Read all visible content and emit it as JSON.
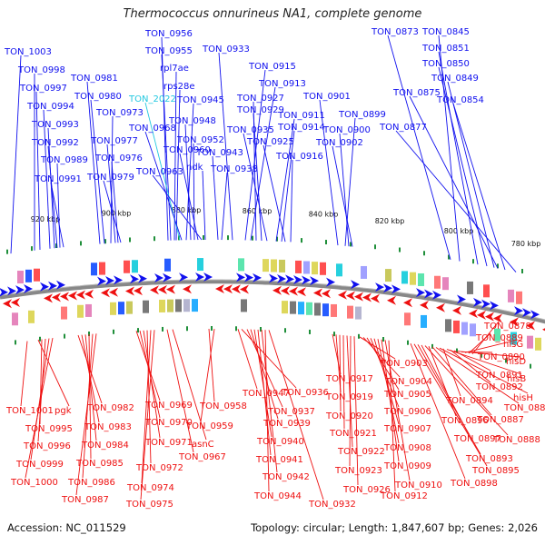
{
  "title": "Thermococcus onnurineus NA1, complete genome",
  "footer": {
    "accession": "Accession: NC_011529",
    "summary": "Topology: circular; Length: 1,847,607 bp; Genes: 2,026"
  },
  "colors": {
    "forward": "#1010ee",
    "reverse": "#ee1010",
    "highlight": "#22c8e0",
    "backbone": "#888888",
    "tick": "#1f8f3a"
  },
  "scale_labels": [
    "780 kbp",
    "800 kbp",
    "820 kbp",
    "840 kbp",
    "860 kbp",
    "880 kbp",
    "900 kbp",
    "920 kbp"
  ],
  "top_labels": [
    "TON_1003",
    "TON_0998",
    "TON_0997",
    "TON_0994",
    "TON_0993",
    "TON_0992",
    "TON_0989",
    "TON_0991",
    "TON_0981",
    "TON_0980",
    "TON_0973",
    "TON_0977",
    "TON_0976",
    "TON_0979",
    "TON_0956",
    "TON_0955",
    "rpl7ae",
    "rps28e",
    "TON_2022",
    "TON_0945",
    "TON_0968",
    "TON_0948",
    "TON_0952",
    "TON_0960",
    "TON_0963",
    "ndk",
    "TON_0943",
    "TON_0938",
    "TON_0933",
    "TON_0915",
    "TON_0913",
    "TON_0927",
    "TON_0929",
    "TON_0935",
    "TON_0911",
    "TON_0914",
    "TON_0925",
    "TON_0916",
    "TON_0901",
    "TON_0899",
    "TON_0900",
    "TON_0902",
    "TON_0873",
    "TON_0845",
    "TON_0851",
    "TON_0850",
    "TON_0849",
    "TON_0875",
    "TON_0854",
    "TON_0877"
  ],
  "bottom_labels": [
    "TON_1001",
    "pgk",
    "TON_0995",
    "TON_0996",
    "TON_0999",
    "TON_1000",
    "TON_0982",
    "TON_0983",
    "TON_0984",
    "TON_0985",
    "TON_0986",
    "TON_0987",
    "TON_0969",
    "TON_0970",
    "TON_0971",
    "TON_0972",
    "TON_0974",
    "TON_0975",
    "TON_0967",
    "asnC",
    "TON_0958",
    "TON_0959",
    "TON_0947",
    "TON_0936",
    "TON_0937",
    "TON_0939",
    "TON_0940",
    "TON_0941",
    "TON_0942",
    "TON_0944",
    "TON_0932",
    "TON_0917",
    "TON_0919",
    "TON_0920",
    "TON_0921",
    "TON_0922",
    "TON_0923",
    "TON_0926",
    "TON_0903",
    "TON_0904",
    "TON_0905",
    "TON_0906",
    "TON_0907",
    "TON_0908",
    "TON_0909",
    "TON_0910",
    "TON_0912",
    "TON_0878",
    "TON_0889",
    "hisG",
    "TON_0890",
    "hisD",
    "TON_0891",
    "TON_0892",
    "hisB",
    "TON_0894",
    "hisH",
    "TON_0884",
    "TON_0887",
    "TON_0896",
    "TON_0888",
    "TON_0897",
    "TON_0893",
    "TON_0895",
    "TON_0898"
  ]
}
